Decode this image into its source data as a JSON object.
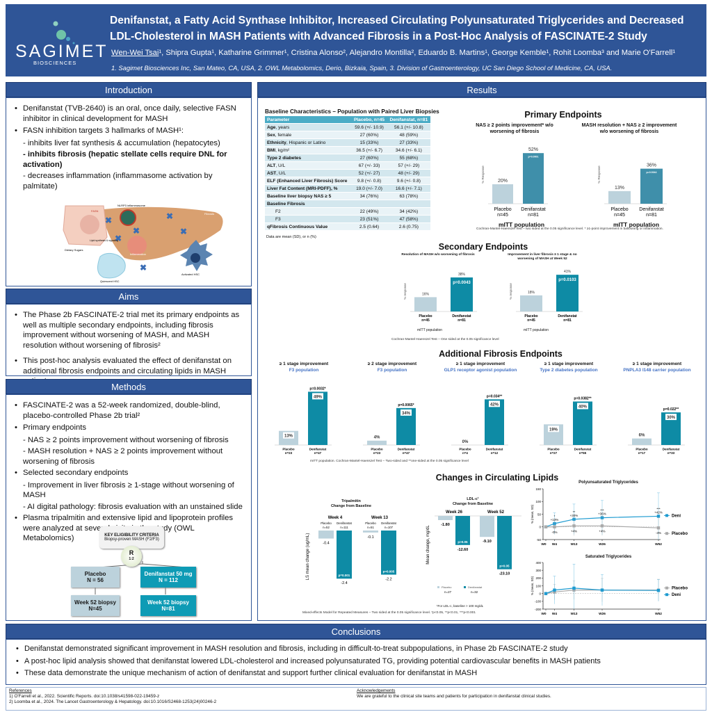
{
  "header": {
    "logo": {
      "name": "SAGIMET",
      "sub": "BIOSCIENCES"
    },
    "title_line1": "Denifanstat, a Fatty Acid Synthase Inhibitor, Increased Circulating Polyunsaturated Triglycerides and Decreased",
    "title_line2": "LDL-Cholesterol in MASH Patients with Advanced Fibrosis in a Post-Hoc Analysis of FASCINATE-2 Study",
    "presenting_author": "Wen-Wei Tsai",
    "authors_rest": "¹, Shipra Gupta¹, Katharine Grimmer¹, Cristina Alonso², Alejandro Montilla², Eduardo B. Martins¹, George Kemble¹, Rohit Loomba³ and Marie O'Farrell¹",
    "affiliations": "1. Sagimet Biosciences Inc, San Mateo, CA, USA, 2. OWL Metabolomics, Derio, Bizkaia, Spain, 3. Division of Gastroenterology, UC San Diego School of Medicine, CA, USA."
  },
  "introduction": {
    "heading": "Introduction",
    "b1": "Denifanstat (TVB-2640) is an oral, once daily, selective FASN inhibitor in clinical development for MASH",
    "b2": "FASN inhibition targets 3 hallmarks of MASH¹:",
    "s1": "- inhibits liver fat synthesis & accumulation (hepatocytes)",
    "s2": "- inhibits fibrosis (hepatic stellate cells require DNL for activation)",
    "s3": "- decreases inflammation (inflammasome activation by palmitate)",
    "figure_labels": {
      "inflammasome": "NLRP3 inflammasome",
      "fibrosis": "Fibrosis",
      "inflammation": "Inflammation",
      "fasn": "FASN",
      "sugars": "Dietary Sugars",
      "lipid": "Lipid synthesis & signaling",
      "activated": "Activated HSC",
      "quiescent": "Quiescent HSC"
    }
  },
  "aims": {
    "heading": "Aims",
    "b1": "The Phase 2b FASCINATE-2 trial met its primary endpoints as well as multiple secondary endpoints, including fibrosis improvement without worsening of MASH, and MASH resolution without worsening of fibrosis²",
    "b2": "This post-hoc analysis evaluated the effect of denifanstat on additional fibrosis endpoints and circulating lipids in MASH patients"
  },
  "methods": {
    "heading": "Methods",
    "b1": "FASCINATE-2 was a 52-week randomized, double-blind, placebo-controlled Phase 2b trial²",
    "b2": "Primary endpoints",
    "b2s1": "- NAS ≥ 2 points improvement without worsening of fibrosis",
    "b2s2": "- MASH resolution + NAS ≥ 2 points improvement without worsening of fibrosis",
    "b3": "Selected secondary endpoints",
    "b3s1": "- Improvement in liver fibrosis ≥ 1-stage without worsening of MASH",
    "b3s2": "- AI digital pathology: fibrosis evaluation with an unstained slide",
    "b4": "Plasma tripalmitin and extensive lipid and lipoprotein profiles were analyzed at several visits in the study (OWL Metabolomics)",
    "flow": {
      "criteria_title": "KEY ELIGIBILITY CRITERIA",
      "criteria_sub": "Biopsy-proven MASH (F2/F3)",
      "rand": "R",
      "ratio": "1:2",
      "placebo": "Placebo",
      "placebo_n": "N = 56",
      "deni": "Denifanstat 50 mg",
      "deni_n": "N = 112",
      "placebo_biopsy": "Week 52 biopsy",
      "placebo_biopsy_n": "N=45",
      "deni_biopsy": "Week 52 biopsy",
      "deni_biopsy_n": "N=81"
    }
  },
  "results": {
    "heading": "Results",
    "baseline": {
      "title": "Baseline Characteristics – Population with Paired Liver Biopsies",
      "columns": [
        "Parameter",
        "Placebo, n=45",
        "Denifanstat, n=81"
      ],
      "rows": [
        {
          "b": "Age",
          "r": ", years",
          "p": "59.6 (+/- 10.9)",
          "d": "56.1 (+/- 10.8)"
        },
        {
          "b": "Sex",
          "r": ", female",
          "p": "27 (60%)",
          "d": "48 (59%)"
        },
        {
          "b": "Ethnicity",
          "r": ", Hispanic or Latino",
          "p": "15 (33%)",
          "d": "27 (33%)"
        },
        {
          "b": "BMI",
          "r": ", kg/m²",
          "p": "36.5 (+/- 6.7)",
          "d": "34.6 (+/- 6.1)"
        },
        {
          "b": "Type 2 diabetes",
          "r": "",
          "p": "27 (60%)",
          "d": "55 (68%)"
        },
        {
          "b": "ALT",
          "r": ", U/L",
          "p": "67 (+/- 33)",
          "d": "57 (+/- 29)"
        },
        {
          "b": "AST",
          "r": ", U/L",
          "p": "52 (+/- 27)",
          "d": "48 (+/- 29)"
        },
        {
          "b": "ELF (Enhanced Liver Fibrosis) Score",
          "r": "",
          "p": "9.8 (+/- 0.8)",
          "d": "9.6 (+/- 0.8)"
        },
        {
          "b": "Liver Fat Content (MRI-PDFF), %",
          "r": "",
          "p": "19.0 (+/- 7.0)",
          "d": "16.6 (+/- 7.1)"
        },
        {
          "b": "Baseline liver biopsy NAS ≥ 5",
          "r": "",
          "p": "34 (76%)",
          "d": "63 (78%)"
        },
        {
          "b": "Baseline Fibrosis",
          "r": "",
          "p": "",
          "d": ""
        },
        {
          "b": "",
          "r": "F2",
          "p": "22 (49%)",
          "d": "34 (42%)"
        },
        {
          "b": "",
          "r": "F3",
          "p": "23 (51%)",
          "d": "47 (58%)"
        },
        {
          "b": "qFibrosis Continuous Value",
          "r": "",
          "p": "2.5 (0.64)",
          "d": "2.6 (0.75)"
        }
      ],
      "note": "Data are mean (SD), or n (%)"
    },
    "primary": {
      "title": "Primary Endpoints",
      "population": "mITT population",
      "footnote": "Cochran-Mantel-Haenszel Test – two sided at the 0.05 significance level. * ≥1-point improvement in ballooning or inflammation."
    },
    "secondary": {
      "title": "Secondary  Endpoints",
      "population": "mITT population",
      "footnote": "Cochran-Mantel-Haenszel Test – One sided at the 0.05 significance level"
    },
    "additional": {
      "title": "Additional Fibrosis Endpoints",
      "footnote": "mITT population. Cochran-Mantel-Haenszel Test – *two-sided and **one-sided at the 0.05 significance level"
    },
    "lipids": {
      "title": "Changes in Circulating Lipids",
      "footnote": "Mixed-effects Model for Repeated Measures – Two sided at the 0.05 significance level. *p<0.05, **p<0.01, ***p<0.001",
      "ldl_note": "¹For LDL-c, baseline > 100 mg/dL"
    }
  },
  "chart_data": [
    {
      "id": "primary1",
      "type": "bar",
      "title": "NAS ≥ 2 points improvement* w/o worsening of fibrosis",
      "ylabel": "% Response",
      "categories": [
        "Placebo",
        "Denifanstat"
      ],
      "n": [
        "n=45",
        "n=81"
      ],
      "values": [
        20,
        52
      ],
      "labels": [
        "20%",
        "52%"
      ],
      "p": "p=0.0001",
      "ylim": [
        0,
        60
      ]
    },
    {
      "id": "primary2",
      "type": "bar",
      "title": "MASH resolution + NAS ≥ 2 improvement w/o worsening of fibrosis",
      "ylabel": "% Response",
      "categories": [
        "Placebo",
        "Denifanstat"
      ],
      "n": [
        "n=45",
        "n=81"
      ],
      "values": [
        13,
        36
      ],
      "labels": [
        "13%",
        "36%"
      ],
      "p": "p=0.0044",
      "ylim": [
        0,
        60
      ]
    },
    {
      "id": "secondary1",
      "type": "bar",
      "title": "Resolution of MASH w/o worsening of fibrosis",
      "ylabel": "% response",
      "categories": [
        "Placebo",
        "Denifanstat"
      ],
      "n": [
        "n=45",
        "n=81"
      ],
      "values": [
        16,
        38
      ],
      "labels": [
        "16%",
        "38%"
      ],
      "p": "p=0.0043",
      "ylim": [
        0,
        45
      ]
    },
    {
      "id": "secondary2",
      "type": "bar",
      "title": "Improvement in liver fibrosis ≥ 1 stage & no worsening of MASH at Week 52",
      "ylabel": "% response",
      "categories": [
        "Placebo",
        "Denifanstat"
      ],
      "n": [
        "n=45",
        "n=81"
      ],
      "values": [
        18,
        41
      ],
      "labels": [
        "18%",
        "41%"
      ],
      "p": "p=0.0103",
      "ylim": [
        0,
        45
      ]
    },
    {
      "id": "add1",
      "type": "bar",
      "title": "≥ 1 stage improvement",
      "subtitle": "F3 population",
      "categories": [
        "Placebo",
        "Denifanstat"
      ],
      "n": [
        "n=23",
        "n=47"
      ],
      "values": [
        13,
        49
      ],
      "labels": [
        "13%",
        "49%"
      ],
      "p": "p=0.0032*",
      "ylim": [
        0,
        55
      ]
    },
    {
      "id": "add2",
      "type": "bar",
      "title": "≥ 2 stage improvement",
      "subtitle": "F3 population",
      "categories": [
        "Placebo",
        "Denifanstat"
      ],
      "n": [
        "n=23",
        "n=47"
      ],
      "values": [
        4,
        34
      ],
      "labels": [
        "4%",
        "34%"
      ],
      "p": "p=0.0065*",
      "ylim": [
        0,
        55
      ]
    },
    {
      "id": "add3",
      "type": "bar",
      "title": "≥ 1 stage improvement",
      "subtitle": "GLP1 receptor agonist population",
      "categories": [
        "Placebo",
        "Denifanstat"
      ],
      "n": [
        "n=4",
        "n=12"
      ],
      "values": [
        0,
        42
      ],
      "labels": [
        "0%",
        "42%"
      ],
      "p": "p=0.034**",
      "ylim": [
        0,
        55
      ]
    },
    {
      "id": "add4",
      "type": "bar",
      "title": "≥ 1 stage improvement",
      "subtitle": "Type 2 diabetes population",
      "categories": [
        "Placebo",
        "Denifanstat"
      ],
      "n": [
        "n=27",
        "n=55"
      ],
      "values": [
        19,
        40
      ],
      "labels": [
        "19%",
        "40%"
      ],
      "p": "p=0.0382**",
      "ylim": [
        0,
        55
      ]
    },
    {
      "id": "add5",
      "type": "bar",
      "title": "≥ 1 stage improvement",
      "subtitle": "PNPLA3 I148 carrier population",
      "categories": [
        "Placebo",
        "Denifanstat"
      ],
      "n": [
        "n=17",
        "n=33"
      ],
      "values": [
        6,
        30
      ],
      "labels": [
        "6%",
        "30%"
      ],
      "p": "p=0.022**",
      "ylim": [
        0,
        55
      ]
    },
    {
      "id": "tripalmitin",
      "type": "bar",
      "title": "Tripalmitin",
      "subtitle": "Change from Baseline",
      "ylabel": "LS mean  change (ug/mL)",
      "groups": [
        {
          "name": "Week 4",
          "bars": [
            {
              "cat": "Placebo",
              "n": "n=52",
              "value": -0.4,
              "label": "-0.4"
            },
            {
              "cat": "Denifanstat",
              "n": "n=111",
              "value": -2.4,
              "label": "-2.4",
              "p": "p=0.001"
            }
          ]
        },
        {
          "name": "Week 13",
          "bars": [
            {
              "cat": "Placebo",
              "n": "n=51",
              "value": -0.1,
              "label": "-0.1"
            },
            {
              "cat": "Denifanstat",
              "n": "n=107",
              "value": -2.2,
              "label": "-2.2",
              "p": "p=0.005"
            }
          ]
        }
      ],
      "ylim": [
        -2.6,
        0
      ]
    },
    {
      "id": "ldl",
      "type": "bar",
      "title": "LDL-c¹",
      "subtitle": "Change from Baseline",
      "ylabel": "Mean change, mg/dL",
      "legend": [
        {
          "name": "Placebo",
          "n": "n=27"
        },
        {
          "name": "Denifanstat",
          "n": "n=32"
        }
      ],
      "groups": [
        {
          "name": "Week 26",
          "bars": [
            {
              "cat": "Placebo",
              "value": -1.8,
              "label": "-1.80"
            },
            {
              "cat": "Denifanstat",
              "value": -12.6,
              "label": "-12.60",
              "p": "p>0.05"
            }
          ]
        },
        {
          "name": "Week 52",
          "bars": [
            {
              "cat": "Placebo",
              "value": -9.1,
              "label": "-9.10"
            },
            {
              "cat": "Denifanstat",
              "value": -23.1,
              "label": "-23.10",
              "p": "p>0.05"
            }
          ]
        }
      ],
      "ylim": [
        -25,
        0
      ]
    },
    {
      "id": "pufa",
      "type": "line",
      "title": "Polyunsaturated Triglycerides",
      "ylabel": "% (mean, SD)",
      "x": [
        "W0",
        "W4",
        "W13",
        "W26",
        "W52"
      ],
      "weeks": [
        0,
        4,
        13,
        26,
        52
      ],
      "ylim": [
        -50,
        150
      ],
      "yticks": [
        -50,
        0,
        50,
        100,
        150
      ],
      "series": [
        {
          "name": "Deni",
          "color": "#1E9BD1",
          "values": [
            0,
            13,
            30,
            36,
            42
          ],
          "labels": [
            "",
            "+13%",
            "+30%",
            "+36%",
            "+42%"
          ],
          "stars": [
            "",
            "*",
            "**",
            "***",
            "***"
          ],
          "sd": [
            0,
            42,
            60,
            68,
            92
          ]
        },
        {
          "name": "Placebo",
          "color": "#AAAAAA",
          "values": [
            0,
            0,
            4,
            4,
            -4
          ],
          "labels": [
            "",
            "-0%",
            "+4%",
            "+4%",
            "-4%"
          ],
          "sd": [
            0,
            30,
            40,
            38,
            40
          ]
        }
      ]
    },
    {
      "id": "satg",
      "type": "line",
      "title": "Saturated Triglycerides",
      "ylabel": "% (mean, SD)",
      "x": [
        "W0",
        "W4",
        "W13",
        "W26",
        "W52"
      ],
      "weeks": [
        0,
        4,
        13,
        26,
        52
      ],
      "ylim": [
        -200,
        400
      ],
      "yticks": [
        -200,
        -100,
        0,
        100,
        200,
        300,
        400
      ],
      "series": [
        {
          "name": "Placebo",
          "color": "#AAAAAA",
          "values": [
            0,
            20,
            45,
            45,
            45
          ],
          "sd": [
            0,
            100,
            120,
            150,
            140
          ]
        },
        {
          "name": "Deni",
          "color": "#1E9BD1",
          "values": [
            0,
            45,
            70,
            45,
            40
          ],
          "sd": [
            0,
            180,
            310,
            200,
            140
          ]
        }
      ]
    }
  ],
  "conclusions": {
    "heading": "Conclusions",
    "b1": "Denifanstat demonstrated significant improvement in MASH resolution and fibrosis, including in difficult-to-treat subpopulations, in Phase 2b FASCINATE-2 study",
    "b2": "A post-hoc lipid analysis showed that denifanstat lowered LDL-cholesterol and increased polyunsaturated TG, providing potential cardiovascular benefits in MASH patients",
    "b3": "These data demonstrate the unique mechanism of action of denifanstat and support further clinical evaluation for denifanstat in MASH"
  },
  "references": {
    "heading": "References",
    "r1": "1)  O'Farrell et al., 2022. Scientific Reports. doi:10.1038/s41598-022-19459-z",
    "r2": "2)  Loomba et al., 2024. The Lancet Gastroenterology & Hepatology. doi:10.1016/S2468-1253(24)00246-2"
  },
  "acknowledgements": {
    "heading": "Acknowledgements",
    "text": "We are grateful to the clinical site teams and patients for participation in denifanstat clinical studies."
  },
  "colors": {
    "header": "#2F5597",
    "denifanstat": "#0E8BA5",
    "denifanstat_primary": "#3F8FAA",
    "placebo": "#BCD2DC",
    "deni_line": "#1E9BD1",
    "placebo_line": "#AAAAAA"
  }
}
